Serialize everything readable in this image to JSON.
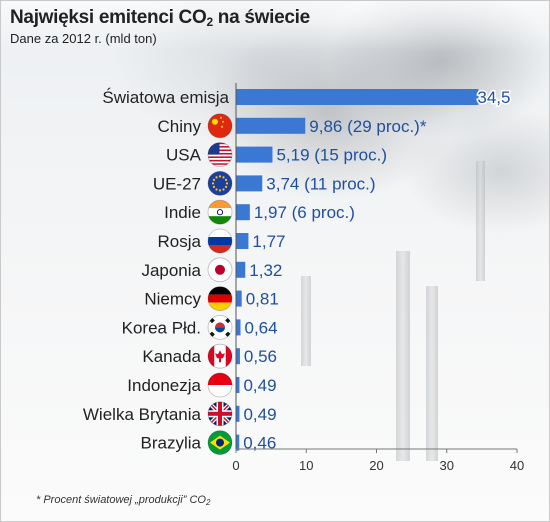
{
  "header": {
    "title_text": "Najwięksi emitenci CO",
    "title_sub": "2",
    "title_tail": " na świecie",
    "subtitle": "Dane za 2012 r. (mld ton)"
  },
  "footnote": {
    "text": "* Procent światowej „produkcji” CO",
    "sub": "2"
  },
  "colors": {
    "bar": "#3a78d4",
    "value_text": "#1f4f9e"
  },
  "chart_data": {
    "type": "bar",
    "orientation": "horizontal",
    "title": "Najwięksi emitenci CO2 na świecie",
    "subtitle": "Dane za 2012 r. (mld ton)",
    "categories": [
      "Światowa emisja",
      "Chiny",
      "USA",
      "UE-27",
      "Indie",
      "Rosja",
      "Japonia",
      "Niemcy",
      "Korea Płd.",
      "Kanada",
      "Indonezja",
      "Wielka Brytania",
      "Brazylia"
    ],
    "values": [
      34.5,
      9.86,
      5.19,
      3.74,
      1.97,
      1.77,
      1.32,
      0.81,
      0.64,
      0.56,
      0.49,
      0.49,
      0.46
    ],
    "value_labels": [
      "34,5",
      "9,86 (29 proc.)*",
      "5,19 (15 proc.)",
      "3,74 (11 proc.)",
      "1,97 (6 proc.)",
      "1,77",
      "1,32",
      "0,81",
      "0,64",
      "0,56",
      "0,49",
      "0,49",
      "0,46"
    ],
    "flags": [
      "",
      "china-flag-icon",
      "usa-flag-icon",
      "eu-flag-icon",
      "india-flag-icon",
      "russia-flag-icon",
      "japan-flag-icon",
      "germany-flag-icon",
      "south-korea-flag-icon",
      "canada-flag-icon",
      "indonesia-flag-icon",
      "uk-flag-icon",
      "brazil-flag-icon"
    ],
    "xlim": [
      0,
      40
    ],
    "xticks": [
      0,
      10,
      20,
      30,
      40
    ],
    "xtick_labels": [
      "0",
      "10",
      "20",
      "30",
      "40"
    ],
    "grid": false
  }
}
